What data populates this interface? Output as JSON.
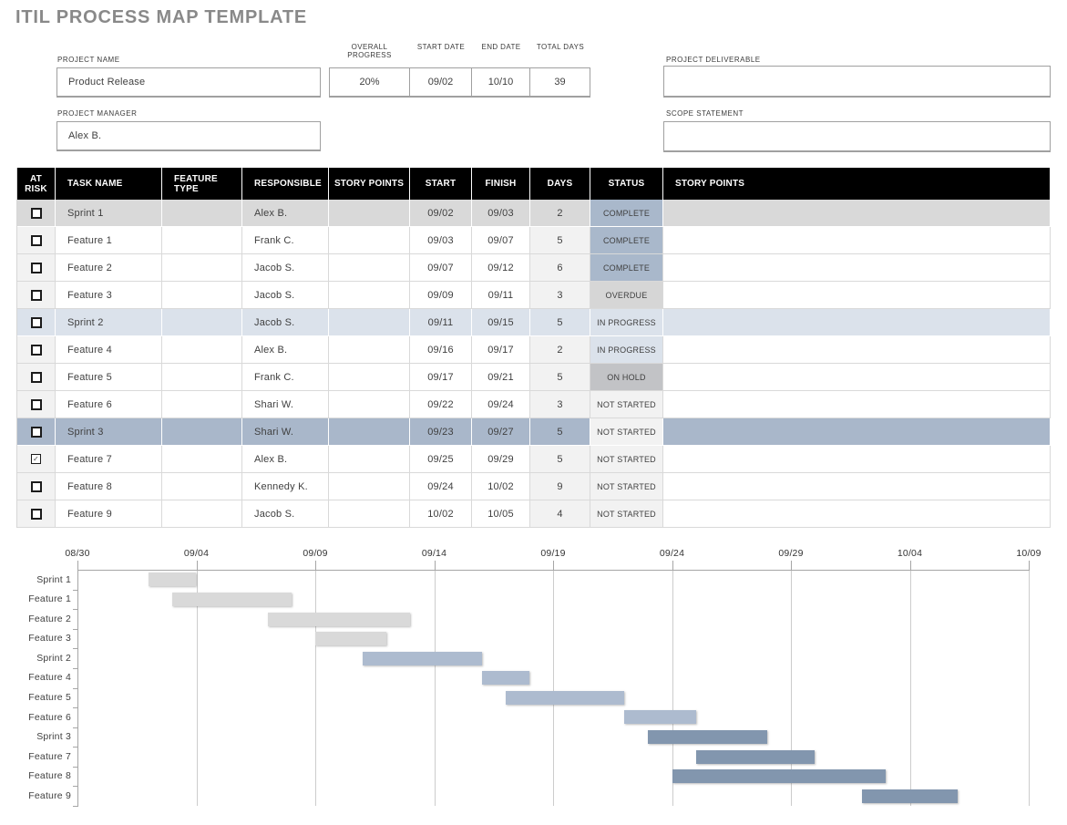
{
  "title": "ITIL PROCESS MAP TEMPLATE",
  "project_info": {
    "project_name": {
      "label": "PROJECT NAME",
      "value": "Product Release"
    },
    "metrics": [
      {
        "label": "OVERALL PROGRESS",
        "value": "20%"
      },
      {
        "label": "START DATE",
        "value": "09/02"
      },
      {
        "label": "END DATE",
        "value": "10/10"
      },
      {
        "label": "TOTAL DAYS",
        "value": "39"
      }
    ],
    "deliverable": {
      "label": "PROJECT DELIVERABLE",
      "value": ""
    },
    "manager": {
      "label": "PROJECT MANAGER",
      "value": "Alex B."
    },
    "scope": {
      "label": "SCOPE STATEMENT",
      "value": ""
    }
  },
  "task_table": {
    "columns": [
      "AT RISK",
      "TASK NAME",
      "FEATURE TYPE",
      "RESPONSIBLE",
      "STORY POINTS",
      "START",
      "FINISH",
      "DAYS",
      "STATUS",
      "STORY POINTS"
    ],
    "rows": [
      {
        "at_risk": false,
        "task_name": "Sprint 1",
        "feature_type": "",
        "responsible": "Alex B.",
        "story_points": "",
        "start": "09/02",
        "finish": "09/03",
        "days": "2",
        "status": "COMPLETE",
        "story_points_2": "",
        "row_type": "sprint1"
      },
      {
        "at_risk": false,
        "task_name": "Feature 1",
        "feature_type": "",
        "responsible": "Frank C.",
        "story_points": "",
        "start": "09/03",
        "finish": "09/07",
        "days": "5",
        "status": "COMPLETE",
        "story_points_2": "",
        "row_type": "feature"
      },
      {
        "at_risk": false,
        "task_name": "Feature 2",
        "feature_type": "",
        "responsible": "Jacob S.",
        "story_points": "",
        "start": "09/07",
        "finish": "09/12",
        "days": "6",
        "status": "COMPLETE",
        "story_points_2": "",
        "row_type": "feature"
      },
      {
        "at_risk": false,
        "task_name": "Feature 3",
        "feature_type": "",
        "responsible": "Jacob S.",
        "story_points": "",
        "start": "09/09",
        "finish": "09/11",
        "days": "3",
        "status": "OVERDUE",
        "story_points_2": "",
        "row_type": "feature"
      },
      {
        "at_risk": false,
        "task_name": "Sprint 2",
        "feature_type": "",
        "responsible": "Jacob S.",
        "story_points": "",
        "start": "09/11",
        "finish": "09/15",
        "days": "5",
        "status": "IN PROGRESS",
        "story_points_2": "",
        "row_type": "sprint2"
      },
      {
        "at_risk": false,
        "task_name": "Feature 4",
        "feature_type": "",
        "responsible": "Alex B.",
        "story_points": "",
        "start": "09/16",
        "finish": "09/17",
        "days": "2",
        "status": "IN PROGRESS",
        "story_points_2": "",
        "row_type": "feature"
      },
      {
        "at_risk": false,
        "task_name": "Feature 5",
        "feature_type": "",
        "responsible": "Frank C.",
        "story_points": "",
        "start": "09/17",
        "finish": "09/21",
        "days": "5",
        "status": "ON HOLD",
        "story_points_2": "",
        "row_type": "feature"
      },
      {
        "at_risk": false,
        "task_name": "Feature 6",
        "feature_type": "",
        "responsible": "Shari W.",
        "story_points": "",
        "start": "09/22",
        "finish": "09/24",
        "days": "3",
        "status": "NOT STARTED",
        "story_points_2": "",
        "row_type": "feature"
      },
      {
        "at_risk": false,
        "task_name": "Sprint 3",
        "feature_type": "",
        "responsible": "Shari W.",
        "story_points": "",
        "start": "09/23",
        "finish": "09/27",
        "days": "5",
        "status": "NOT STARTED",
        "story_points_2": "",
        "row_type": "sprint3"
      },
      {
        "at_risk": true,
        "task_name": "Feature 7",
        "feature_type": "",
        "responsible": "Alex B.",
        "story_points": "",
        "start": "09/25",
        "finish": "09/29",
        "days": "5",
        "status": "NOT STARTED",
        "story_points_2": "",
        "row_type": "feature"
      },
      {
        "at_risk": false,
        "task_name": "Feature 8",
        "feature_type": "",
        "responsible": "Kennedy K.",
        "story_points": "",
        "start": "09/24",
        "finish": "10/02",
        "days": "9",
        "status": "NOT STARTED",
        "story_points_2": "",
        "row_type": "feature"
      },
      {
        "at_risk": false,
        "task_name": "Feature 9",
        "feature_type": "",
        "responsible": "Jacob S.",
        "story_points": "",
        "start": "10/02",
        "finish": "10/05",
        "days": "4",
        "status": "NOT STARTED",
        "story_points_2": "",
        "row_type": "feature"
      }
    ]
  },
  "colors": {
    "status": {
      "COMPLETE": "#a9b8cb",
      "OVERDUE": "#d6d6d6",
      "IN PROGRESS": "#dbe2eb",
      "ON HOLD": "#c2c3c6",
      "NOT STARTED": "#f2f2f2"
    },
    "rows": {
      "sprint1": "#d9d9d9",
      "sprint2": "#dbe2eb",
      "sprint3": "#a9b7ca",
      "feature": "#ffffff"
    },
    "feature_shaded_cell": "#f2f2f2",
    "header_bg": "#000000",
    "bar_gray": "#d9d9d9",
    "bar_light_blue": "#adbbcf",
    "bar_dark_blue": "#8296ae"
  },
  "chart_data": {
    "type": "gantt",
    "x_ticks": [
      "08/30",
      "09/04",
      "09/09",
      "09/14",
      "09/19",
      "09/24",
      "09/29",
      "10/04",
      "10/09"
    ],
    "days_per_tick": 5,
    "axis_start_date": "08/30",
    "tasks": [
      {
        "name": "Sprint 1",
        "start": "09/02",
        "days": 2,
        "offset_days": 3,
        "color": "#d9d9d9"
      },
      {
        "name": "Feature 1",
        "start": "09/03",
        "days": 5,
        "offset_days": 4,
        "color": "#d9d9d9"
      },
      {
        "name": "Feature 2",
        "start": "09/07",
        "days": 6,
        "offset_days": 8,
        "color": "#d9d9d9"
      },
      {
        "name": "Feature 3",
        "start": "09/09",
        "days": 3,
        "offset_days": 10,
        "color": "#d9d9d9"
      },
      {
        "name": "Sprint 2",
        "start": "09/11",
        "days": 5,
        "offset_days": 12,
        "color": "#adbbcf"
      },
      {
        "name": "Feature 4",
        "start": "09/16",
        "days": 2,
        "offset_days": 17,
        "color": "#adbbcf"
      },
      {
        "name": "Feature 5",
        "start": "09/17",
        "days": 5,
        "offset_days": 18,
        "color": "#adbbcf"
      },
      {
        "name": "Feature 6",
        "start": "09/22",
        "days": 3,
        "offset_days": 23,
        "color": "#adbbcf"
      },
      {
        "name": "Sprint 3",
        "start": "09/23",
        "days": 5,
        "offset_days": 24,
        "color": "#8296ae"
      },
      {
        "name": "Feature 7",
        "start": "09/25",
        "days": 5,
        "offset_days": 26,
        "color": "#8296ae"
      },
      {
        "name": "Feature 8",
        "start": "09/24",
        "days": 9,
        "offset_days": 25,
        "color": "#8296ae"
      },
      {
        "name": "Feature 9",
        "start": "10/02",
        "days": 4,
        "offset_days": 33,
        "color": "#8296ae"
      }
    ]
  }
}
